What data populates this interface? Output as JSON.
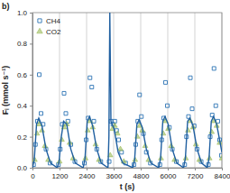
{
  "chart_data": {
    "type": "scatter",
    "title": "b)",
    "x_label": "t (s)",
    "y_label": "Fᵢ (mmol s⁻¹)",
    "xlim": [
      0,
      8400
    ],
    "xticks": [
      0,
      1200,
      2400,
      3600,
      4800,
      6000,
      7200,
      8400
    ],
    "ylim": [
      0,
      1
    ],
    "yticks": [
      {
        "value": 0,
        "label": "0.0"
      },
      {
        "value": 0.2,
        "label": "0.2"
      },
      {
        "value": 0.4,
        "label": "0.4"
      },
      {
        "value": 0.6,
        "label": "0.6"
      },
      {
        "value": 0.8,
        "label": "0.8"
      },
      {
        "value": 1,
        "label": "1.0"
      }
    ],
    "grid": true,
    "legend": "upper left",
    "series": [
      {
        "name": "CH4",
        "type": "scatter",
        "marker": "square",
        "color": "#2e75b6",
        "x": [
          50,
          130,
          220,
          300,
          380,
          470,
          600,
          780,
          1150,
          1230,
          1320,
          1400,
          1480,
          1570,
          1700,
          1880,
          2300,
          2380,
          2470,
          2550,
          2630,
          2720,
          2850,
          3030,
          3400,
          3480,
          3570,
          3650,
          3730,
          3820,
          3950,
          4130,
          4500,
          4580,
          4670,
          4750,
          4830,
          4920,
          5050,
          5230,
          5650,
          5730,
          5820,
          5900,
          5980,
          6070,
          6200,
          6380,
          6750,
          6830,
          6920,
          7000,
          7080,
          7170,
          7300,
          7480,
          7800,
          7880,
          7970,
          8050,
          8130,
          8220,
          8300,
          8380
        ],
        "values": [
          0.02,
          0.15,
          0.3,
          0.6,
          0.35,
          0.28,
          0.12,
          0.03,
          0.02,
          0.12,
          0.28,
          0.48,
          0.35,
          0.3,
          0.15,
          0.04,
          0.03,
          0.18,
          0.32,
          0.58,
          0.52,
          0.3,
          0.12,
          0.04,
          0.04,
          0.3,
          0.28,
          0.3,
          0.24,
          0.18,
          0.1,
          0.03,
          0.02,
          0.15,
          0.3,
          0.47,
          0.33,
          0.22,
          0.1,
          0.03,
          0.02,
          0.18,
          0.32,
          0.55,
          0.4,
          0.26,
          0.12,
          0.04,
          0.02,
          0.2,
          0.33,
          0.58,
          0.38,
          0.27,
          0.12,
          0.04,
          0.02,
          0.2,
          0.34,
          0.64,
          0.4,
          0.3,
          0.18,
          0.08
        ]
      },
      {
        "name": "CO2",
        "type": "scatter",
        "marker": "triangle",
        "color": "#9bbb59",
        "x": [
          100,
          200,
          300,
          420,
          550,
          700,
          1200,
          1300,
          1400,
          1520,
          1650,
          1800,
          2350,
          2450,
          2550,
          2670,
          2800,
          2950,
          3450,
          3550,
          3650,
          3770,
          3900,
          4050,
          4550,
          4650,
          4750,
          4870,
          5000,
          5150,
          5700,
          5800,
          5900,
          6020,
          6150,
          6300,
          6800,
          6900,
          7000,
          7120,
          7250,
          7400,
          7850,
          7950,
          8050,
          8170,
          8300,
          8400
        ],
        "values": [
          0.05,
          0.22,
          0.28,
          0.24,
          0.14,
          0.05,
          0.04,
          0.18,
          0.26,
          0.28,
          0.16,
          0.06,
          0.06,
          0.24,
          0.3,
          0.26,
          0.15,
          0.05,
          0.08,
          0.25,
          0.27,
          0.22,
          0.12,
          0.04,
          0.05,
          0.2,
          0.27,
          0.24,
          0.14,
          0.05,
          0.06,
          0.22,
          0.3,
          0.25,
          0.14,
          0.05,
          0.06,
          0.24,
          0.3,
          0.26,
          0.15,
          0.05,
          0.06,
          0.23,
          0.3,
          0.27,
          0.16,
          0.06
        ]
      },
      {
        "type": "line",
        "color": "#1f5fa0",
        "x": [
          0,
          80,
          180,
          280,
          420,
          600,
          800,
          1100,
          1180,
          1280,
          1380,
          1520,
          1700,
          1900,
          2250,
          2330,
          2430,
          2530,
          2670,
          2850,
          3050,
          3350,
          3390,
          3430,
          3480,
          3620,
          3800,
          4000,
          4450,
          4530,
          4630,
          4730,
          4870,
          5050,
          5250,
          5600,
          5680,
          5780,
          5880,
          6020,
          6200,
          6400,
          6700,
          6780,
          6880,
          6980,
          7120,
          7300,
          7500,
          7750,
          7830,
          7930,
          8030,
          8170,
          8350,
          8400
        ],
        "values": [
          0,
          0.05,
          0.28,
          0.32,
          0.27,
          0.12,
          0.03,
          0,
          0.04,
          0.2,
          0.3,
          0.28,
          0.12,
          0.03,
          0,
          0.06,
          0.3,
          0.33,
          0.27,
          0.12,
          0.03,
          0,
          0.2,
          1.0,
          0.3,
          0.25,
          0.1,
          0.03,
          0,
          0.05,
          0.28,
          0.31,
          0.26,
          0.12,
          0.03,
          0,
          0.06,
          0.3,
          0.33,
          0.28,
          0.12,
          0.03,
          0,
          0.06,
          0.3,
          0.32,
          0.27,
          0.12,
          0.03,
          0,
          0.06,
          0.3,
          0.33,
          0.28,
          0.14,
          0.1
        ]
      }
    ]
  }
}
